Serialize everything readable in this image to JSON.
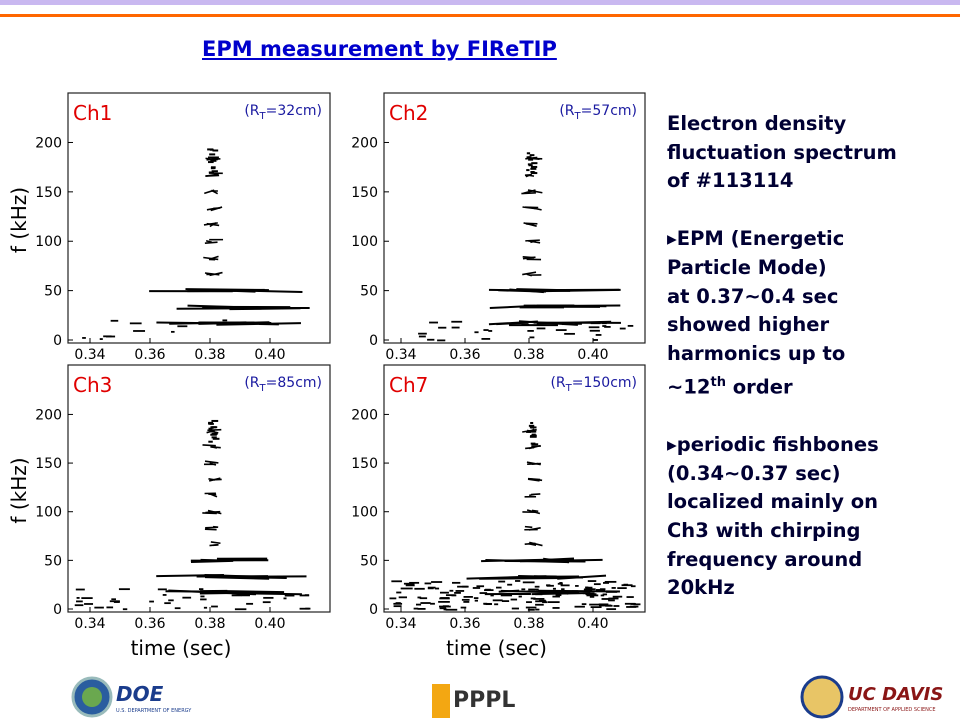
{
  "header": {
    "title": "EPM measurement by FIReTIP"
  },
  "panels": [
    {
      "label": "Ch1",
      "rt": {
        "prefix": "(R",
        "sub": "T",
        "suffix": "=32cm)"
      }
    },
    {
      "label": "Ch2",
      "rt": {
        "prefix": "(R",
        "sub": "T",
        "suffix": "=57cm)"
      }
    },
    {
      "label": "Ch3",
      "rt": {
        "prefix": "(R",
        "sub": "T",
        "suffix": "=85cm)"
      }
    },
    {
      "label": "Ch7",
      "rt": {
        "prefix": "(R",
        "sub": "T",
        "suffix": "=150cm)"
      }
    }
  ],
  "axes": {
    "y_label": "f (kHz)",
    "x_label": "time (sec)",
    "y_ticks": [
      "0",
      "50",
      "100",
      "150",
      "200"
    ],
    "x_ticks": [
      "0.34",
      "0.36",
      "0.38",
      "0.40"
    ]
  },
  "description": {
    "intro": [
      "Electron density",
      "fluctuation spectrum",
      "of #113114"
    ],
    "point1": [
      "▸EPM (Energetic",
      "Particle Mode)",
      "at 0.37~0.4 sec",
      "showed higher",
      "harmonics up to"
    ],
    "point1_last": {
      "pre": "~12",
      "sup": "th",
      "post": " order"
    },
    "point2": [
      "▸periodic fishbones",
      "(0.34~0.37 sec)",
      "localized mainly on",
      "Ch3 with chirping",
      "frequency around",
      "20kHz"
    ]
  },
  "footer": {
    "doe": "DOE",
    "doe_sub": "U.S. DEPARTMENT OF ENERGY",
    "pppl": "PPPL",
    "ucdavis": "UC DAVIS",
    "ucdavis_sub": "DEPARTMENT OF APPLIED SCIENCE"
  }
}
